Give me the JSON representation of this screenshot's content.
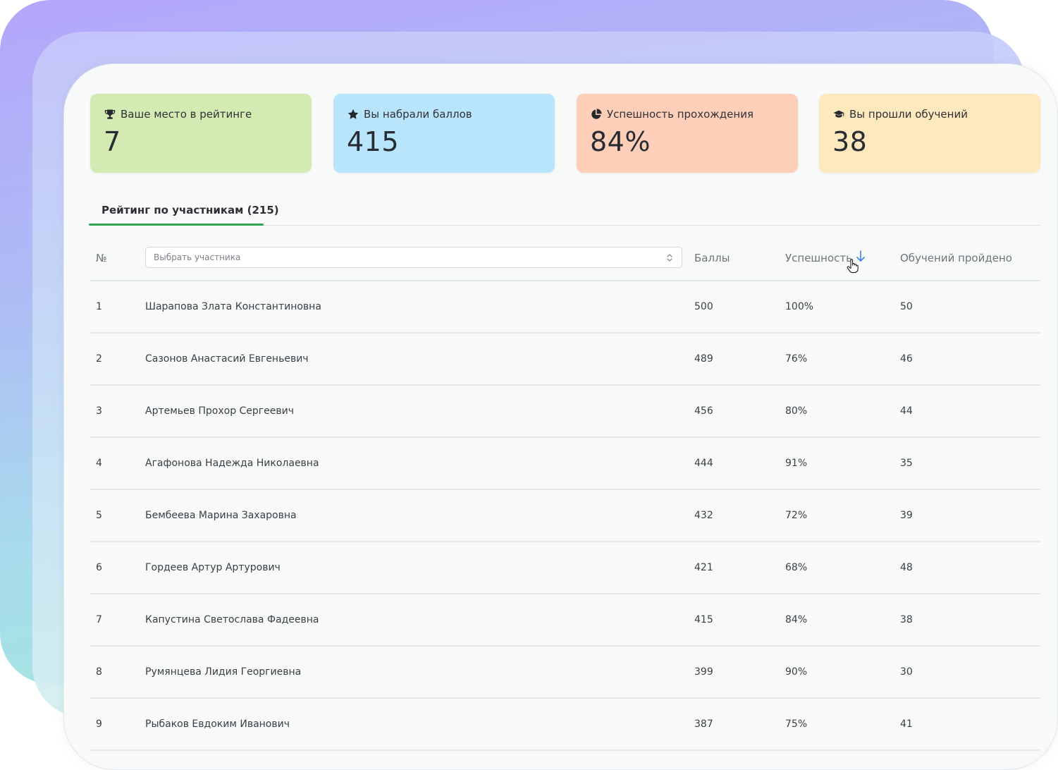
{
  "stats": [
    {
      "label": "Ваше место в рейтинге",
      "value": "7",
      "icon": "trophy-icon",
      "color": "#d3eab3"
    },
    {
      "label": "Вы набрали баллов",
      "value": "415",
      "icon": "star-icon",
      "color": "#b8e5fb"
    },
    {
      "label": "Успешность прохождения",
      "value": "84%",
      "icon": "pie-chart-icon",
      "color": "#fdcfb9"
    },
    {
      "label": "Вы прошли обучений",
      "value": "38",
      "icon": "graduation-cap-icon",
      "color": "#fde9bd"
    }
  ],
  "tab": {
    "label": "Рейтинг по участникам (215)",
    "accent": "#2fa552"
  },
  "table": {
    "headers": {
      "number": "№",
      "participant_placeholder": "Выбрать участника",
      "score": "Баллы",
      "success": "Успешность",
      "completed": "Обучений пройдено"
    },
    "sort_accent": "#3a86d6",
    "rows": [
      {
        "number": "1",
        "name": "Шарапова Злата Константиновна",
        "score": "500",
        "success": "100%",
        "completed": "50"
      },
      {
        "number": "2",
        "name": "Сазонов Анастасий Евгеньевич",
        "score": "489",
        "success": "76%",
        "completed": "46"
      },
      {
        "number": "3",
        "name": "Артемьев Прохор Сергеевич",
        "score": "456",
        "success": "80%",
        "completed": "44"
      },
      {
        "number": "4",
        "name": "Агафонова Надежда Николаевна",
        "score": "444",
        "success": "91%",
        "completed": "35"
      },
      {
        "number": "5",
        "name": "Бембеева Марина Захаровна",
        "score": "432",
        "success": "72%",
        "completed": "39"
      },
      {
        "number": "6",
        "name": "Гордеев Артур Артурович",
        "score": "421",
        "success": "68%",
        "completed": "48"
      },
      {
        "number": "7",
        "name": "Капустина Светослава Фадеевна",
        "score": "415",
        "success": "84%",
        "completed": "38"
      },
      {
        "number": "8",
        "name": "Румянцева Лидия Георгиевна",
        "score": "399",
        "success": "90%",
        "completed": "30"
      },
      {
        "number": "9",
        "name": "Рыбаков Евдоким Иванович",
        "score": "387",
        "success": "75%",
        "completed": "41"
      }
    ]
  }
}
